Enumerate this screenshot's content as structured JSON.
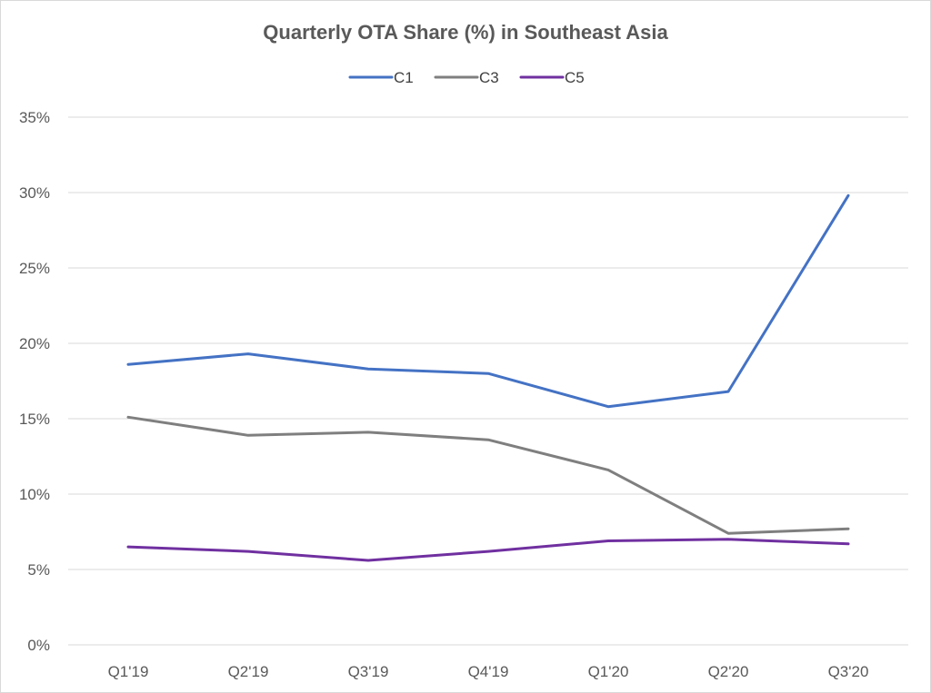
{
  "chart_data": {
    "type": "line",
    "title": "Quarterly OTA Share (%) in Southeast Asia",
    "xlabel": "",
    "ylabel": "",
    "categories": [
      "Q1'19",
      "Q2'19",
      "Q3'19",
      "Q4'19",
      "Q1'20",
      "Q2'20",
      "Q3'20"
    ],
    "series": [
      {
        "name": "C1",
        "color": "#4472c4",
        "values": [
          18.6,
          19.3,
          18.3,
          18.0,
          15.8,
          16.8,
          29.8
        ]
      },
      {
        "name": "C3",
        "color": "#7f7f7f",
        "values": [
          15.1,
          13.9,
          14.1,
          13.6,
          11.6,
          7.4,
          7.7
        ]
      },
      {
        "name": "C5",
        "color": "#7030a0",
        "values": [
          6.5,
          6.2,
          5.6,
          6.2,
          6.9,
          7.0,
          6.7
        ]
      }
    ],
    "ylim": [
      0,
      35
    ],
    "yticks": [
      0,
      5,
      10,
      15,
      20,
      25,
      30,
      35
    ],
    "ytick_labels": [
      "0%",
      "5%",
      "10%",
      "15%",
      "20%",
      "25%",
      "30%",
      "35%"
    ],
    "grid": "horizontal",
    "legend_position": "top-center"
  }
}
